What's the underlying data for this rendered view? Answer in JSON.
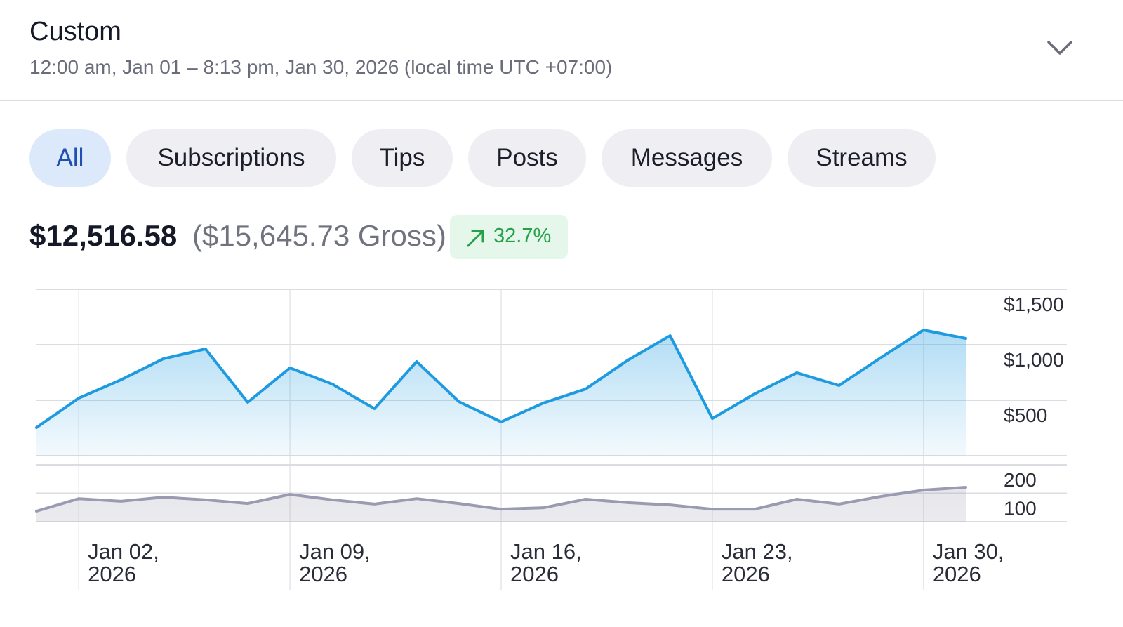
{
  "header": {
    "title": "Custom",
    "subtitle": "12:00 am, Jan 01 – 8:13 pm, Jan 30, 2026 (local time UTC +07:00)"
  },
  "tabs": [
    {
      "label": "All",
      "active": true
    },
    {
      "label": "Subscriptions",
      "active": false
    },
    {
      "label": "Tips",
      "active": false
    },
    {
      "label": "Posts",
      "active": false
    },
    {
      "label": "Messages",
      "active": false
    },
    {
      "label": "Streams",
      "active": false
    }
  ],
  "summary": {
    "net": "$12,516.58",
    "gross": "($15,645.73 Gross)",
    "change": "32.7%"
  },
  "chart_data": [
    {
      "type": "line",
      "categories": [
        null,
        "Jan 02,\n2026",
        null,
        null,
        null,
        null,
        "Jan 09,\n2026",
        null,
        null,
        null,
        null,
        "Jan 16,\n2026",
        null,
        null,
        null,
        null,
        "Jan 23,\n2026",
        null,
        null,
        null,
        null,
        "Jan 30,\n2026",
        null
      ],
      "series": [
        {
          "color": "#1e9be0",
          "values": [
            253,
            519,
            684,
            873,
            962,
            481,
            791,
            646,
            424,
            848,
            487,
            304,
            475,
            601,
            861,
            1082,
            335,
            557,
            747,
            633,
            886,
            1133,
            1057
          ]
        }
      ],
      "ylim": [
        0,
        1500
      ],
      "yticks": [
        {
          "value": 1500,
          "label": "$1,500"
        },
        {
          "value": 1000,
          "label": "$1,000"
        },
        {
          "value": 500,
          "label": "$500"
        }
      ],
      "grid": true
    },
    {
      "type": "line",
      "series": [
        {
          "color": "#9a9bb0",
          "values": [
            37,
            81,
            72,
            86,
            77,
            64,
            96,
            77,
            62,
            81,
            64,
            44,
            49,
            79,
            67,
            59,
            44,
            44,
            79,
            62,
            89,
            111,
            121
          ]
        }
      ],
      "ylim": [
        0,
        200
      ],
      "yticks": [
        200,
        100
      ],
      "grid": true
    }
  ]
}
